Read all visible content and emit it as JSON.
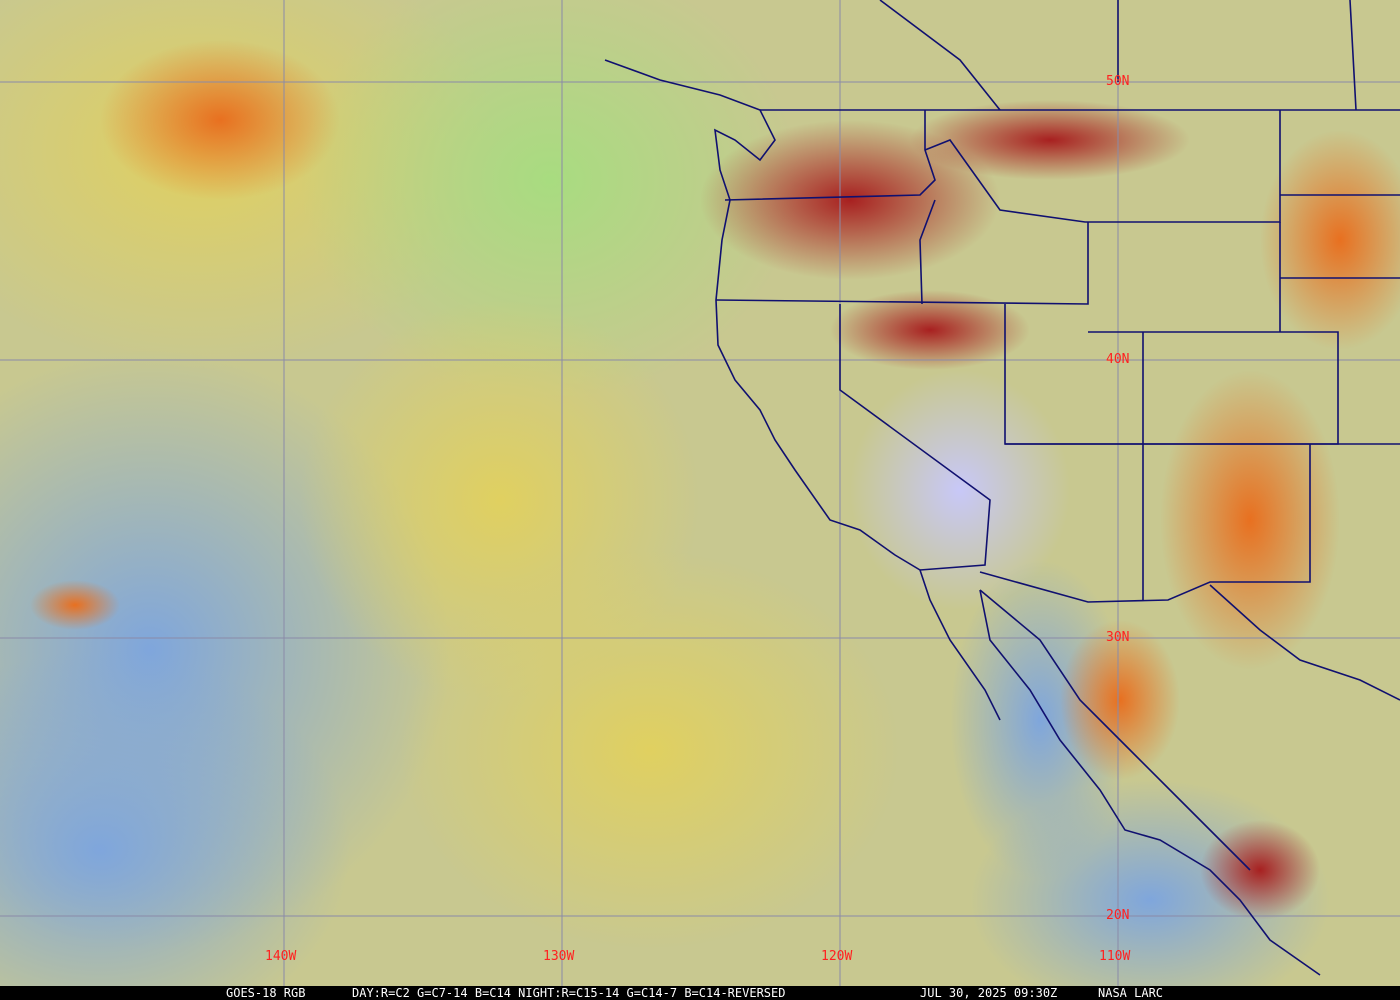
{
  "map": {
    "latitude_labels": [
      "50N",
      "40N",
      "30N",
      "20N"
    ],
    "longitude_labels": [
      "140W",
      "130W",
      "120W",
      "110W"
    ],
    "colors": {
      "grid": "#8080a0",
      "borders": "#101070",
      "labels": "#ff2020",
      "ocean_clear": "#7fa8d8",
      "low_cloud": "#d8d070",
      "high_cloud_red": "#a02020"
    }
  },
  "footer": {
    "satellite": "GOES-18 RGB",
    "recipe": "DAY:R=C2 G=C7-14 B=C14 NIGHT:R=C15-14 G=C14-7 B=C14-REVERSED",
    "timestamp": "JUL 30, 2025 09:30Z",
    "source": "NASA LARC"
  }
}
